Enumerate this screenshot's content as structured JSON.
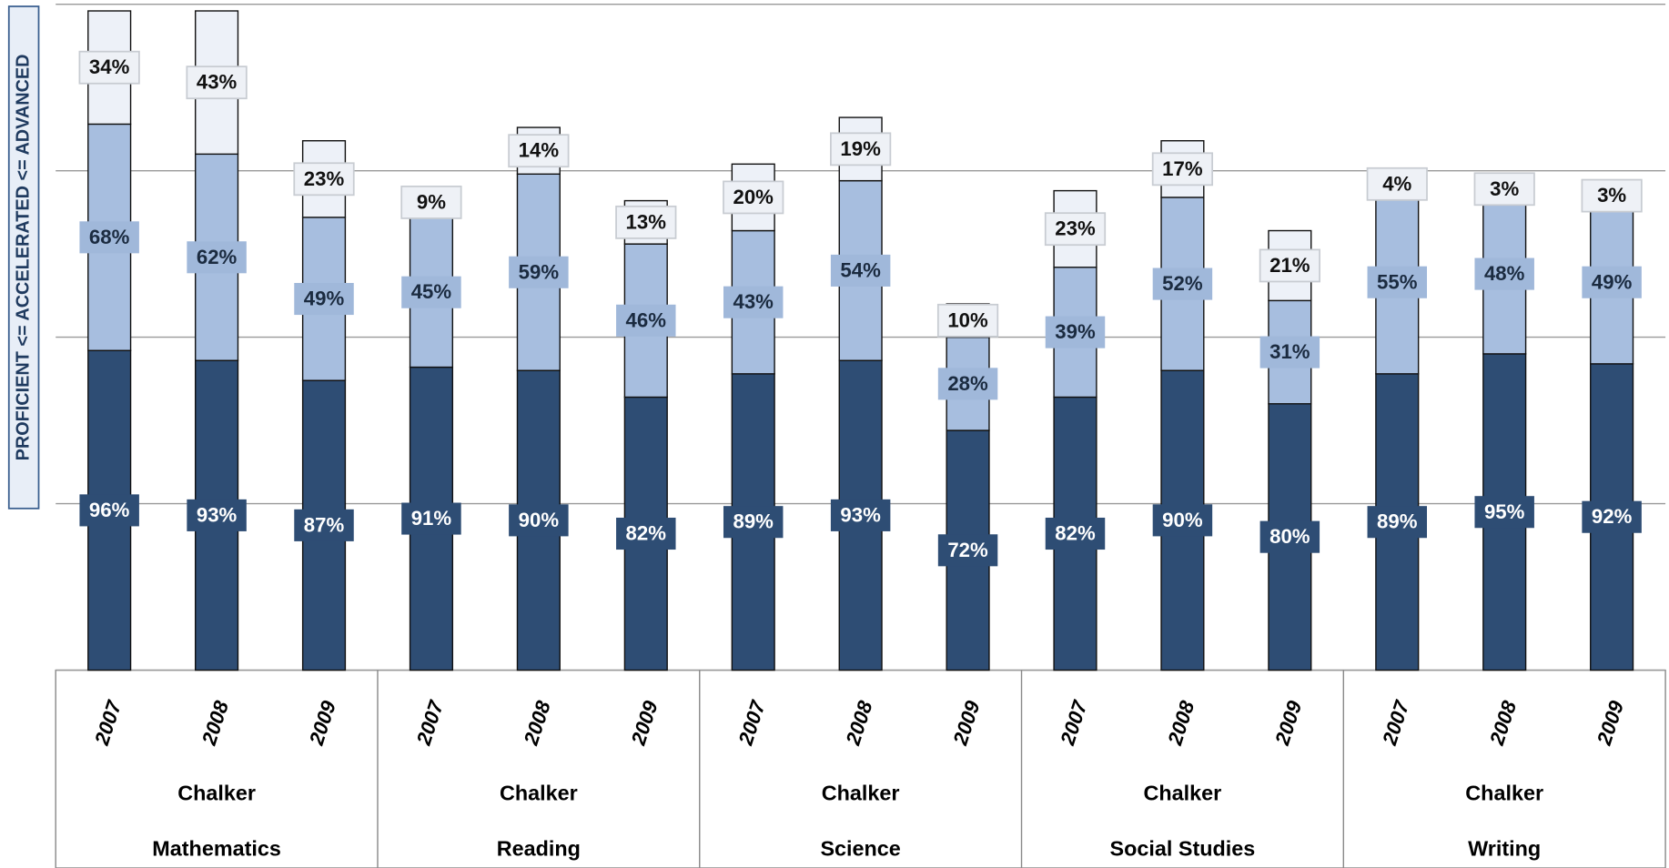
{
  "chart_data": {
    "type": "stacked_bar",
    "y_label": "PROFICIENT <= ACCELERATED <= ADVANCED",
    "categories": [
      "2007",
      "2008",
      "2009",
      "2007",
      "2008",
      "2009",
      "2007",
      "2008",
      "2009",
      "2007",
      "2008",
      "2009",
      "2007",
      "2008",
      "2009"
    ],
    "groups": [
      {
        "school": "Chalker",
        "subject": "Mathematics"
      },
      {
        "school": "Chalker",
        "subject": "Reading"
      },
      {
        "school": "Chalker",
        "subject": "Science"
      },
      {
        "school": "Chalker",
        "subject": "Social Studies"
      },
      {
        "school": "Chalker",
        "subject": "Writing"
      }
    ],
    "series": [
      {
        "color": "#2e4d74",
        "values": [
          96,
          93,
          87,
          91,
          90,
          82,
          89,
          93,
          72,
          82,
          90,
          80,
          89,
          95,
          92
        ],
        "value_labels": [
          "96%",
          "93%",
          "87%",
          "91%",
          "90%",
          "82%",
          "89%",
          "93%",
          "72%",
          "82%",
          "90%",
          "80%",
          "89%",
          "95%",
          "92%"
        ]
      },
      {
        "color": "#a7bedf",
        "values": [
          68,
          62,
          49,
          45,
          59,
          46,
          43,
          54,
          28,
          39,
          52,
          31,
          55,
          48,
          49
        ],
        "value_labels": [
          "68%",
          "62%",
          "49%",
          "45%",
          "59%",
          "46%",
          "43%",
          "54%",
          "28%",
          "39%",
          "52%",
          "31%",
          "55%",
          "48%",
          "49%"
        ]
      },
      {
        "color": "#edf1f8",
        "values": [
          34,
          43,
          23,
          9,
          14,
          13,
          20,
          19,
          10,
          23,
          17,
          21,
          4,
          3,
          3
        ],
        "value_labels": [
          "34%",
          "43%",
          "23%",
          "9%",
          "14%",
          "13%",
          "20%",
          "19%",
          "10%",
          "23%",
          "17%",
          "21%",
          "4%",
          "3%",
          "3%"
        ]
      }
    ],
    "ylim": [
      0,
      200
    ],
    "yticks": [
      0,
      50,
      100,
      150,
      200
    ],
    "grid": true
  }
}
